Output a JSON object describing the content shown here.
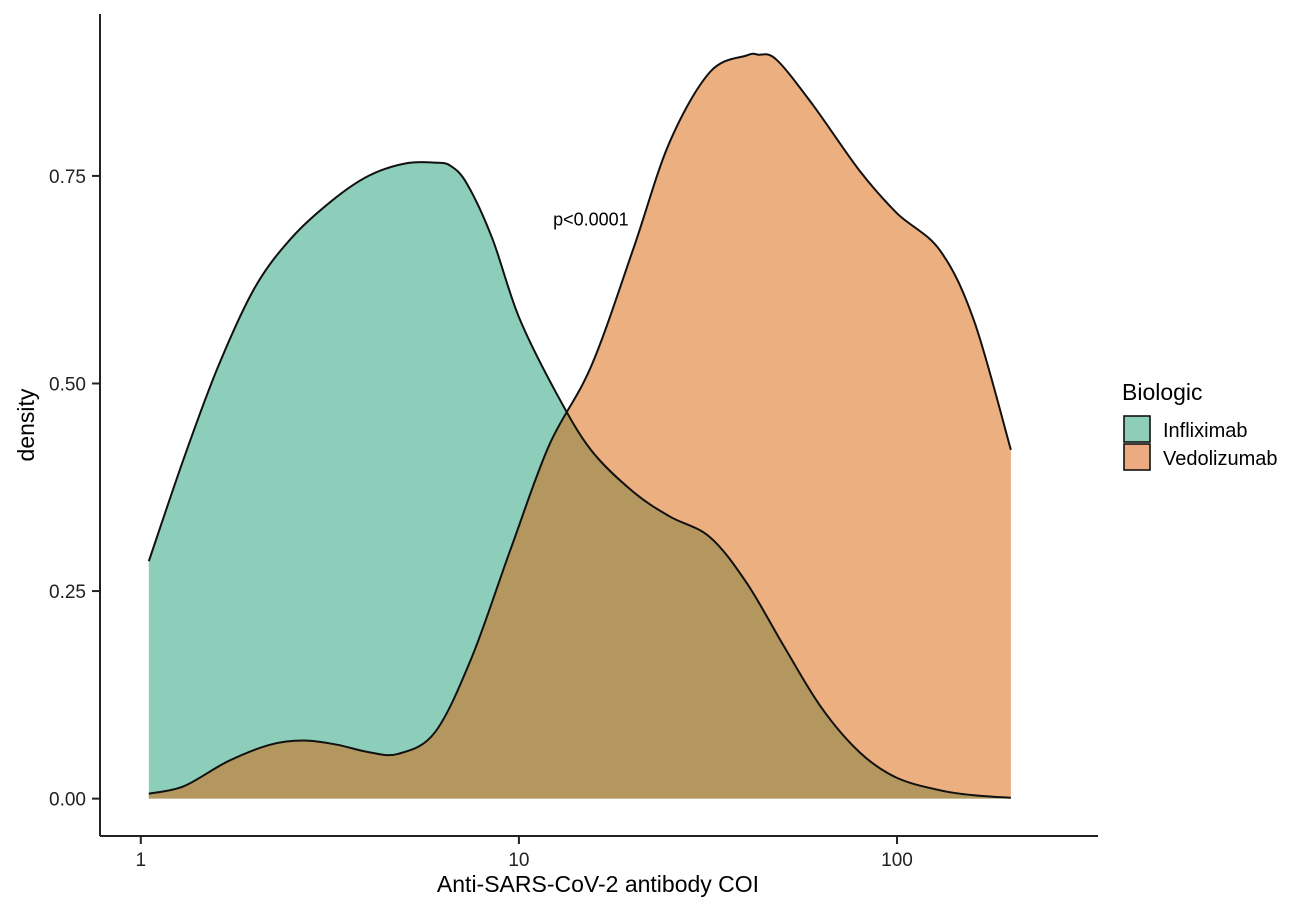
{
  "chart_data": {
    "type": "area",
    "subtype": "density",
    "title": "",
    "xlabel": "Anti-SARS-CoV-2 antibody COI",
    "ylabel": "density",
    "x_scale": "log10",
    "xlim": [
      0.78,
      340
    ],
    "ylim": [
      -0.045,
      0.945
    ],
    "x_ticks": [
      1,
      10,
      100
    ],
    "x_tick_labels": [
      "1",
      "10",
      "100"
    ],
    "y_ticks": [
      0,
      0.25,
      0.5,
      0.75
    ],
    "y_tick_labels": [
      "0.00",
      "0.25",
      "0.50",
      "0.75"
    ],
    "grid": false,
    "annotations": [
      {
        "text": "p<0.0001",
        "x": 15.5,
        "y": 0.69
      }
    ],
    "legend": {
      "title": "Biologic",
      "position": "right"
    },
    "series": [
      {
        "name": "Infliximab",
        "color": "#1B9E77",
        "fill_color": "#8ECDB8",
        "x": [
          1.05,
          1.3,
          1.6,
          2.0,
          2.5,
          3.2,
          4.0,
          5.0,
          6.0,
          6.6,
          7.3,
          8.5,
          10.0,
          12.5,
          15.5,
          20.0,
          25.0,
          32.0,
          40.0,
          50.0,
          63.0,
          80.0,
          100.0,
          130.0,
          160.0,
          200.0
        ],
        "y": [
          0.286,
          0.41,
          0.52,
          0.615,
          0.675,
          0.72,
          0.75,
          0.765,
          0.766,
          0.762,
          0.74,
          0.675,
          0.58,
          0.49,
          0.42,
          0.37,
          0.34,
          0.315,
          0.26,
          0.185,
          0.11,
          0.055,
          0.025,
          0.01,
          0.004,
          0.001
        ]
      },
      {
        "name": "Vedolizumab",
        "color": "#D95F02",
        "fill_color": "#ECAA80",
        "x": [
          1.05,
          1.3,
          1.7,
          2.2,
          2.7,
          3.3,
          4.0,
          4.8,
          6.0,
          7.5,
          9.5,
          12.0,
          15.5,
          20.0,
          25.0,
          32.0,
          40.0,
          43.0,
          48.0,
          60.0,
          80.0,
          100.0,
          130.0,
          160.0,
          200.0
        ],
        "y": [
          0.006,
          0.015,
          0.045,
          0.065,
          0.07,
          0.065,
          0.056,
          0.054,
          0.08,
          0.17,
          0.3,
          0.425,
          0.52,
          0.66,
          0.79,
          0.875,
          0.895,
          0.896,
          0.89,
          0.835,
          0.755,
          0.705,
          0.66,
          0.575,
          0.42
        ]
      }
    ]
  }
}
